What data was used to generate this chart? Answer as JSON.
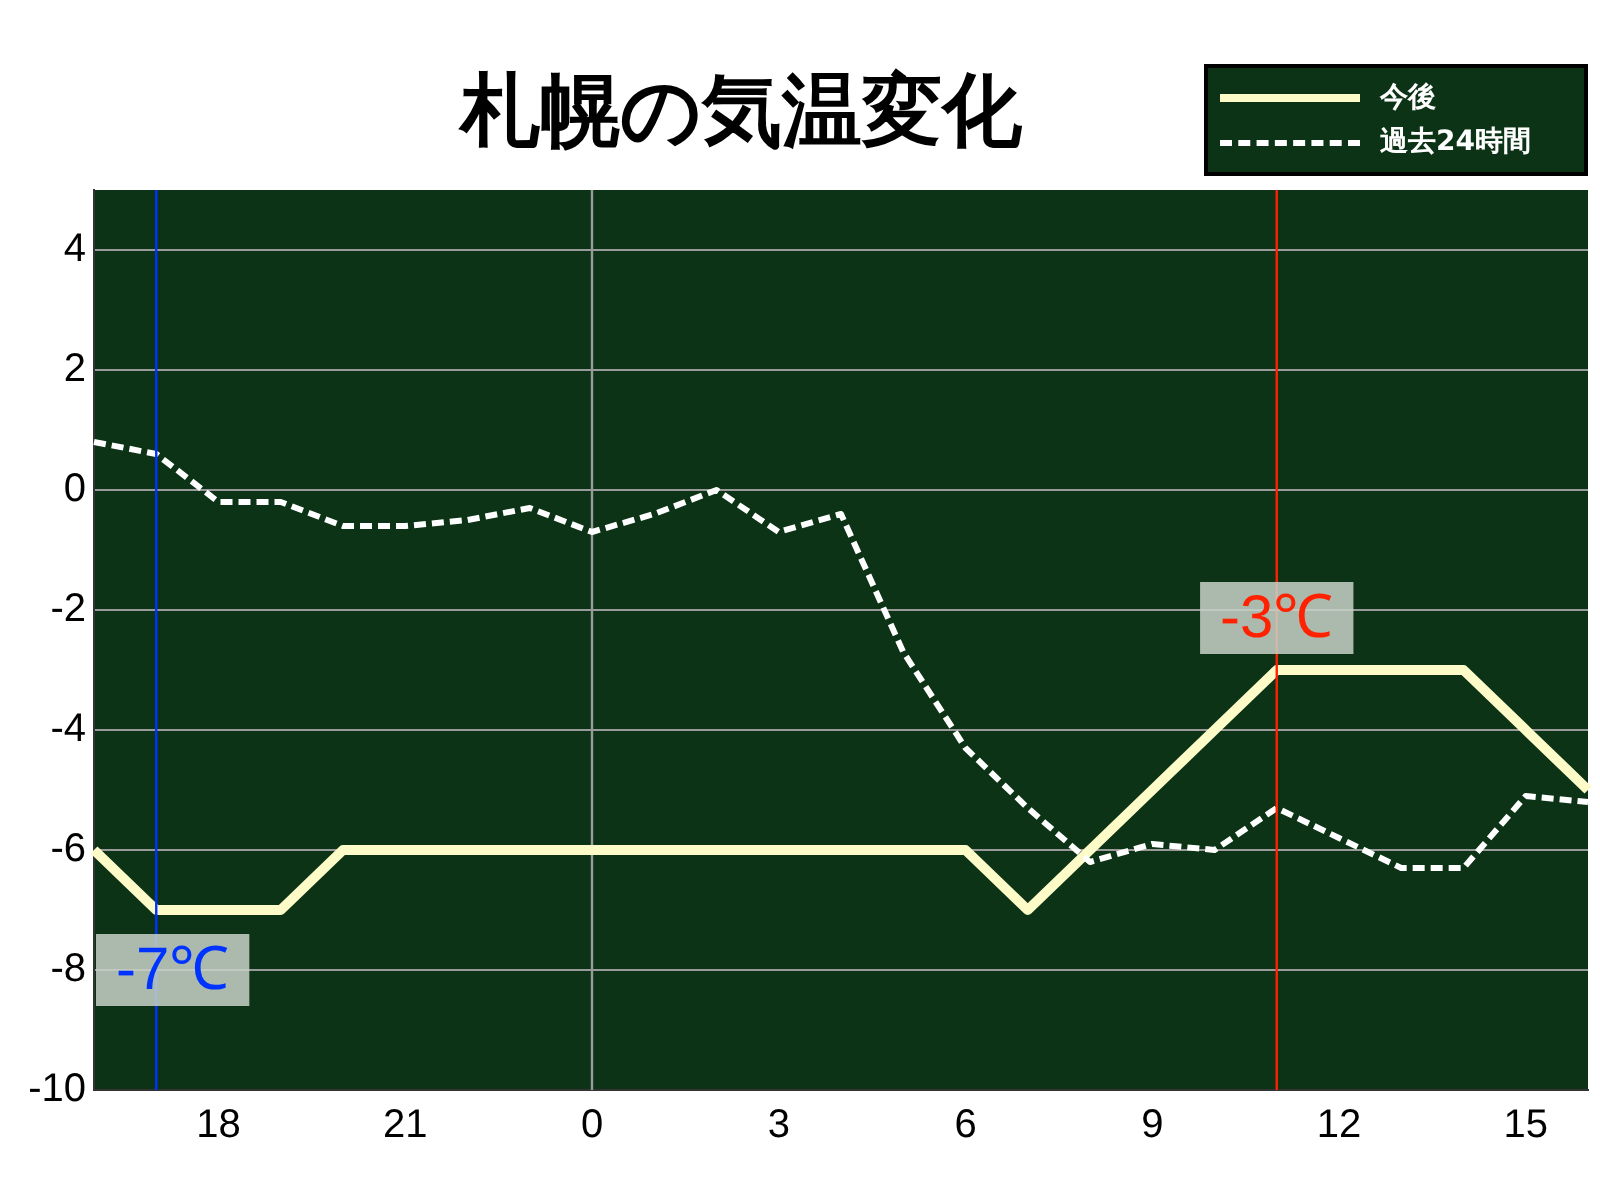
{
  "chart_data": {
    "type": "line",
    "title": "札幌の気温変化",
    "categories": [
      null,
      null,
      "18",
      null,
      null,
      "21",
      null,
      null,
      "0",
      null,
      null,
      "3",
      null,
      null,
      "6",
      null,
      null,
      "9",
      null,
      null,
      "12",
      null,
      null,
      "15",
      null
    ],
    "ylim": [
      -10,
      5
    ],
    "yticks": [
      -10,
      -8,
      -6,
      -4,
      -2,
      0,
      2,
      4
    ],
    "grid": "y",
    "legend": "top right",
    "marker": "none",
    "series": [
      {
        "name": "今後",
        "color": "#fdfbc8",
        "line_style": "solid",
        "values": [
          -6,
          -7,
          -7,
          -7,
          -6,
          -6,
          -6,
          -6,
          -6,
          -6,
          -6,
          -6,
          -6,
          -6,
          -6,
          -7,
          -6,
          -5,
          -4,
          -3,
          -3,
          -3,
          -3,
          -4,
          -5
        ]
      },
      {
        "name": "過去24時間",
        "color": "#ffffff",
        "line_style": "dashed",
        "values": [
          0.8,
          0.6,
          -0.2,
          -0.2,
          -0.6,
          -0.6,
          -0.5,
          -0.3,
          -0.7,
          -0.4,
          0,
          -0.7,
          -0.4,
          -2.7,
          -4.3,
          -5.3,
          -6.2,
          -5.9,
          -6.0,
          -5.3,
          -5.8,
          -6.3,
          -6.3,
          -5.1,
          -5.2
        ]
      }
    ],
    "ref_lines": [
      {
        "axis": "x",
        "value": "0",
        "color": "#9a9a9a"
      }
    ],
    "annotations": [
      {
        "text": "-7℃",
        "y": -7
      },
      {
        "text": "-3℃",
        "y": -3
      }
    ]
  }
}
